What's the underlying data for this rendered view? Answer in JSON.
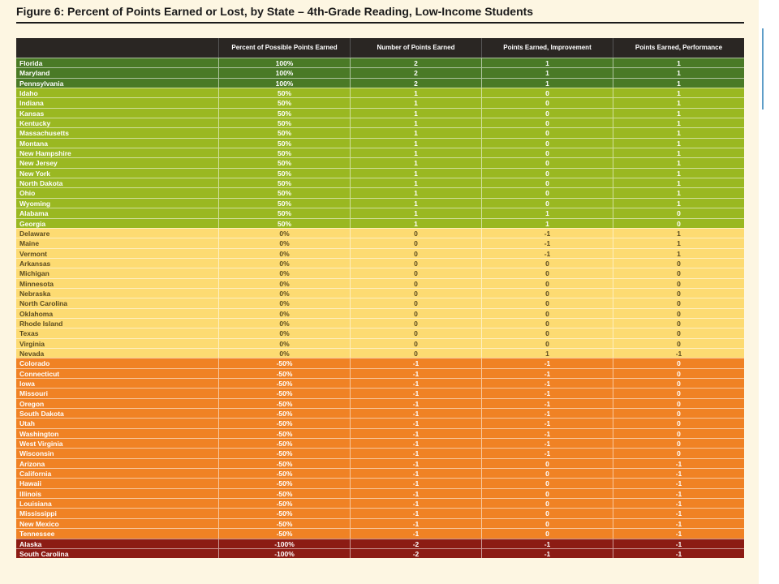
{
  "title": "Figure 6: Percent of Points Earned or Lost, by State – 4th-Grade Reading, Low-Income Students",
  "colors": {
    "g-dark": "#4a7a26",
    "g-light": "#9ab821",
    "y": "#fddb72",
    "o": "#f08224",
    "r": "#8c1c14",
    "header": "#2a2623"
  },
  "chart_data": {
    "type": "table",
    "title": "Figure 6: Percent of Points Earned or Lost, by State – 4th-Grade Reading, Low-Income Students",
    "columns": [
      "",
      "Percent of Possible Points Earned",
      "Number of Points Earned",
      "Points Earned, Improvement",
      "Points Earned, Performance"
    ],
    "rows": [
      {
        "state": "Florida",
        "percent": "100%",
        "points": "2",
        "improvement": "1",
        "performance": "1",
        "color": "g-dark"
      },
      {
        "state": "Maryland",
        "percent": "100%",
        "points": "2",
        "improvement": "1",
        "performance": "1",
        "color": "g-dark"
      },
      {
        "state": "Pennsylvania",
        "percent": "100%",
        "points": "2",
        "improvement": "1",
        "performance": "1",
        "color": "g-dark"
      },
      {
        "state": "Idaho",
        "percent": "50%",
        "points": "1",
        "improvement": "0",
        "performance": "1",
        "color": "g-light"
      },
      {
        "state": "Indiana",
        "percent": "50%",
        "points": "1",
        "improvement": "0",
        "performance": "1",
        "color": "g-light"
      },
      {
        "state": "Kansas",
        "percent": "50%",
        "points": "1",
        "improvement": "0",
        "performance": "1",
        "color": "g-light"
      },
      {
        "state": "Kentucky",
        "percent": "50%",
        "points": "1",
        "improvement": "0",
        "performance": "1",
        "color": "g-light"
      },
      {
        "state": "Massachusetts",
        "percent": "50%",
        "points": "1",
        "improvement": "0",
        "performance": "1",
        "color": "g-light"
      },
      {
        "state": "Montana",
        "percent": "50%",
        "points": "1",
        "improvement": "0",
        "performance": "1",
        "color": "g-light"
      },
      {
        "state": "New Hampshire",
        "percent": "50%",
        "points": "1",
        "improvement": "0",
        "performance": "1",
        "color": "g-light"
      },
      {
        "state": "New Jersey",
        "percent": "50%",
        "points": "1",
        "improvement": "0",
        "performance": "1",
        "color": "g-light"
      },
      {
        "state": "New York",
        "percent": "50%",
        "points": "1",
        "improvement": "0",
        "performance": "1",
        "color": "g-light"
      },
      {
        "state": "North Dakota",
        "percent": "50%",
        "points": "1",
        "improvement": "0",
        "performance": "1",
        "color": "g-light"
      },
      {
        "state": "Ohio",
        "percent": "50%",
        "points": "1",
        "improvement": "0",
        "performance": "1",
        "color": "g-light"
      },
      {
        "state": "Wyoming",
        "percent": "50%",
        "points": "1",
        "improvement": "0",
        "performance": "1",
        "color": "g-light"
      },
      {
        "state": "Alabama",
        "percent": "50%",
        "points": "1",
        "improvement": "1",
        "performance": "0",
        "color": "g-light"
      },
      {
        "state": "Georgia",
        "percent": "50%",
        "points": "1",
        "improvement": "1",
        "performance": "0",
        "color": "g-light"
      },
      {
        "state": "Delaware",
        "percent": "0%",
        "points": "0",
        "improvement": "-1",
        "performance": "1",
        "color": "y"
      },
      {
        "state": "Maine",
        "percent": "0%",
        "points": "0",
        "improvement": "-1",
        "performance": "1",
        "color": "y"
      },
      {
        "state": "Vermont",
        "percent": "0%",
        "points": "0",
        "improvement": "-1",
        "performance": "1",
        "color": "y"
      },
      {
        "state": "Arkansas",
        "percent": "0%",
        "points": "0",
        "improvement": "0",
        "performance": "0",
        "color": "y"
      },
      {
        "state": "Michigan",
        "percent": "0%",
        "points": "0",
        "improvement": "0",
        "performance": "0",
        "color": "y"
      },
      {
        "state": "Minnesota",
        "percent": "0%",
        "points": "0",
        "improvement": "0",
        "performance": "0",
        "color": "y"
      },
      {
        "state": "Nebraska",
        "percent": "0%",
        "points": "0",
        "improvement": "0",
        "performance": "0",
        "color": "y"
      },
      {
        "state": "North Carolina",
        "percent": "0%",
        "points": "0",
        "improvement": "0",
        "performance": "0",
        "color": "y"
      },
      {
        "state": "Oklahoma",
        "percent": "0%",
        "points": "0",
        "improvement": "0",
        "performance": "0",
        "color": "y"
      },
      {
        "state": "Rhode Island",
        "percent": "0%",
        "points": "0",
        "improvement": "0",
        "performance": "0",
        "color": "y"
      },
      {
        "state": "Texas",
        "percent": "0%",
        "points": "0",
        "improvement": "0",
        "performance": "0",
        "color": "y"
      },
      {
        "state": "Virginia",
        "percent": "0%",
        "points": "0",
        "improvement": "0",
        "performance": "0",
        "color": "y"
      },
      {
        "state": "Nevada",
        "percent": "0%",
        "points": "0",
        "improvement": "1",
        "performance": "-1",
        "color": "y"
      },
      {
        "state": "Colorado",
        "percent": "-50%",
        "points": "-1",
        "improvement": "-1",
        "performance": "0",
        "color": "o"
      },
      {
        "state": "Connecticut",
        "percent": "-50%",
        "points": "-1",
        "improvement": "-1",
        "performance": "0",
        "color": "o"
      },
      {
        "state": "Iowa",
        "percent": "-50%",
        "points": "-1",
        "improvement": "-1",
        "performance": "0",
        "color": "o"
      },
      {
        "state": "Missouri",
        "percent": "-50%",
        "points": "-1",
        "improvement": "-1",
        "performance": "0",
        "color": "o"
      },
      {
        "state": "Oregon",
        "percent": "-50%",
        "points": "-1",
        "improvement": "-1",
        "performance": "0",
        "color": "o"
      },
      {
        "state": "South Dakota",
        "percent": "-50%",
        "points": "-1",
        "improvement": "-1",
        "performance": "0",
        "color": "o"
      },
      {
        "state": "Utah",
        "percent": "-50%",
        "points": "-1",
        "improvement": "-1",
        "performance": "0",
        "color": "o"
      },
      {
        "state": "Washington",
        "percent": "-50%",
        "points": "-1",
        "improvement": "-1",
        "performance": "0",
        "color": "o"
      },
      {
        "state": "West Virginia",
        "percent": "-50%",
        "points": "-1",
        "improvement": "-1",
        "performance": "0",
        "color": "o"
      },
      {
        "state": "Wisconsin",
        "percent": "-50%",
        "points": "-1",
        "improvement": "-1",
        "performance": "0",
        "color": "o"
      },
      {
        "state": "Arizona",
        "percent": "-50%",
        "points": "-1",
        "improvement": "0",
        "performance": "-1",
        "color": "o"
      },
      {
        "state": "California",
        "percent": "-50%",
        "points": "-1",
        "improvement": "0",
        "performance": "-1",
        "color": "o"
      },
      {
        "state": "Hawaii",
        "percent": "-50%",
        "points": "-1",
        "improvement": "0",
        "performance": "-1",
        "color": "o"
      },
      {
        "state": "Illinois",
        "percent": "-50%",
        "points": "-1",
        "improvement": "0",
        "performance": "-1",
        "color": "o"
      },
      {
        "state": "Louisiana",
        "percent": "-50%",
        "points": "-1",
        "improvement": "0",
        "performance": "-1",
        "color": "o"
      },
      {
        "state": "Mississippi",
        "percent": "-50%",
        "points": "-1",
        "improvement": "0",
        "performance": "-1",
        "color": "o"
      },
      {
        "state": "New Mexico",
        "percent": "-50%",
        "points": "-1",
        "improvement": "0",
        "performance": "-1",
        "color": "o"
      },
      {
        "state": "Tennessee",
        "percent": "-50%",
        "points": "-1",
        "improvement": "0",
        "performance": "-1",
        "color": "o"
      },
      {
        "state": "Alaska",
        "percent": "-100%",
        "points": "-2",
        "improvement": "-1",
        "performance": "-1",
        "color": "r"
      },
      {
        "state": "South Carolina",
        "percent": "-100%",
        "points": "-2",
        "improvement": "-1",
        "performance": "-1",
        "color": "r"
      }
    ]
  }
}
